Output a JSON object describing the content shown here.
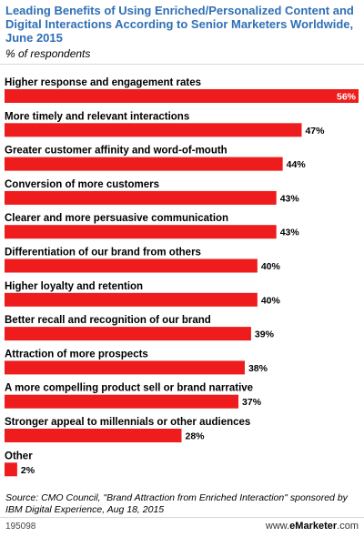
{
  "header": {
    "title": "Leading Benefits of Using Enriched/Personalized Content and Digital Interactions According to Senior Marketers Worldwide, June 2015",
    "subtitle": "% of respondents"
  },
  "footer": {
    "source": "Source: CMO Council, \"Brand Attraction from Enriched Interaction\" sponsored by IBM Digital Experience, Aug 18, 2015",
    "chart_id": "195098",
    "brand_prefix": "www.",
    "brand_name": "eMarketer",
    "brand_suffix": ".com"
  },
  "colors": {
    "bar": "#ee1c1c",
    "title": "#2f6fb5"
  },
  "chart_data": {
    "type": "bar",
    "orientation": "horizontal",
    "categories": [
      "Higher response and engagement rates",
      "More timely and relevant interactions",
      "Greater customer affinity and word-of-mouth",
      "Conversion of more customers",
      "Clearer and more persuasive communication",
      "Differentiation of our brand from others",
      "Higher loyalty and retention",
      "Better recall and recognition of our brand",
      "Attraction of more prospects",
      "A more compelling product sell or brand narrative",
      "Stronger appeal to millennials or other audiences",
      "Other"
    ],
    "values": [
      56,
      47,
      44,
      43,
      43,
      40,
      40,
      39,
      38,
      37,
      28,
      2
    ],
    "value_labels": [
      "56%",
      "47%",
      "44%",
      "43%",
      "43%",
      "40%",
      "40%",
      "39%",
      "38%",
      "37%",
      "28%",
      "2%"
    ],
    "xlim": [
      0,
      56
    ],
    "grid": false,
    "legend": "none"
  }
}
